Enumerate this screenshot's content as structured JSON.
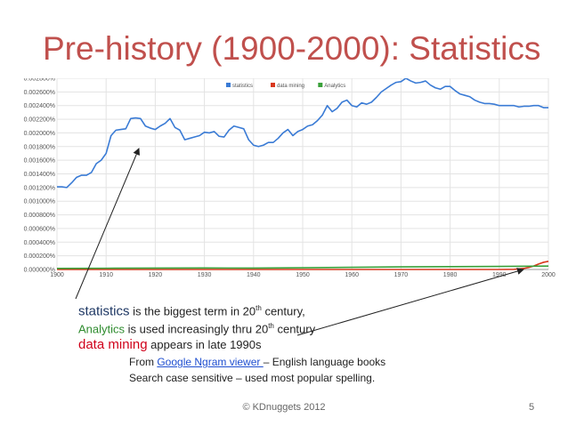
{
  "slide": {
    "title": "Pre-history (1900-2000): Statistics",
    "page_number": "5",
    "footer": "© KDnuggets 2012"
  },
  "annotations": {
    "line1": {
      "term": "statistics",
      "text_before_sup": " is the biggest term in 20",
      "sup": "th",
      "text_after_sup": " century,"
    },
    "line2": {
      "term": "Analytics",
      "text": " is used increasingly thru 20",
      "sup": "th",
      "text_after_sup": " century"
    },
    "line3": {
      "term": "data mining",
      "text": " appears in late 1990s"
    }
  },
  "source": {
    "from_prefix": "From ",
    "link_text": "Google Ngram viewer ",
    "from_suffix": "– English language books",
    "line2": "Search case sensitive – used most popular spelling."
  },
  "colors": {
    "title": "#c0504d",
    "statistics": "#3a7bd5",
    "data_mining": "#d9381e",
    "analytics": "#3aa13a",
    "arrow": "#222222"
  },
  "chart_data": {
    "type": "line",
    "title": "",
    "xlabel": "",
    "ylabel": "",
    "xlim": [
      1900,
      2000
    ],
    "ylim": [
      0,
      0.0028
    ],
    "grid": true,
    "legend": "top-center",
    "x_ticks": [
      "1900",
      "1910",
      "1920",
      "1930",
      "1940",
      "1950",
      "1960",
      "1970",
      "1980",
      "1990",
      "2000"
    ],
    "y_ticks": [
      "0.002800%",
      "0.002600%",
      "0.002400%",
      "0.002200%",
      "0.002000%",
      "0.001800%",
      "0.001600%",
      "0.001400%",
      "0.001200%",
      "0.001000%",
      "0.000800%",
      "0.000600%",
      "0.000400%",
      "0.000200%",
      "0.000000%"
    ],
    "series": [
      {
        "name": "statistics",
        "color": "#3a7bd5",
        "points": [
          [
            1900,
            0.00121
          ],
          [
            1901,
            0.00121
          ],
          [
            1902,
            0.0012
          ],
          [
            1903,
            0.00127
          ],
          [
            1904,
            0.00135
          ],
          [
            1905,
            0.00138
          ],
          [
            1906,
            0.00138
          ],
          [
            1907,
            0.00142
          ],
          [
            1908,
            0.00155
          ],
          [
            1909,
            0.0016
          ],
          [
            1910,
            0.0017
          ],
          [
            1911,
            0.00196
          ],
          [
            1912,
            0.00204
          ],
          [
            1913,
            0.00205
          ],
          [
            1914,
            0.00206
          ],
          [
            1915,
            0.00221
          ],
          [
            1916,
            0.00222
          ],
          [
            1917,
            0.00221
          ],
          [
            1918,
            0.0021
          ],
          [
            1919,
            0.00207
          ],
          [
            1920,
            0.00205
          ],
          [
            1921,
            0.0021
          ],
          [
            1922,
            0.00214
          ],
          [
            1923,
            0.00221
          ],
          [
            1924,
            0.00208
          ],
          [
            1925,
            0.00204
          ],
          [
            1926,
            0.0019
          ],
          [
            1927,
            0.00192
          ],
          [
            1928,
            0.00194
          ],
          [
            1929,
            0.00196
          ],
          [
            1930,
            0.00201
          ],
          [
            1931,
            0.002
          ],
          [
            1932,
            0.00202
          ],
          [
            1933,
            0.00195
          ],
          [
            1934,
            0.00194
          ],
          [
            1935,
            0.00204
          ],
          [
            1936,
            0.0021
          ],
          [
            1937,
            0.00208
          ],
          [
            1938,
            0.00206
          ],
          [
            1939,
            0.0019
          ],
          [
            1940,
            0.00182
          ],
          [
            1941,
            0.0018
          ],
          [
            1942,
            0.00182
          ],
          [
            1943,
            0.00186
          ],
          [
            1944,
            0.00186
          ],
          [
            1945,
            0.00192
          ],
          [
            1946,
            0.002
          ],
          [
            1947,
            0.00205
          ],
          [
            1948,
            0.00196
          ],
          [
            1949,
            0.00202
          ],
          [
            1950,
            0.00205
          ],
          [
            1951,
            0.0021
          ],
          [
            1952,
            0.00212
          ],
          [
            1953,
            0.00218
          ],
          [
            1954,
            0.00226
          ],
          [
            1955,
            0.0024
          ],
          [
            1956,
            0.00231
          ],
          [
            1957,
            0.00236
          ],
          [
            1958,
            0.00245
          ],
          [
            1959,
            0.00248
          ],
          [
            1960,
            0.0024
          ],
          [
            1961,
            0.00238
          ],
          [
            1962,
            0.00244
          ],
          [
            1963,
            0.00242
          ],
          [
            1964,
            0.00245
          ],
          [
            1965,
            0.00252
          ],
          [
            1966,
            0.0026
          ],
          [
            1967,
            0.00265
          ],
          [
            1968,
            0.0027
          ],
          [
            1969,
            0.00274
          ],
          [
            1970,
            0.00275
          ],
          [
            1971,
            0.0028
          ],
          [
            1972,
            0.00276
          ],
          [
            1973,
            0.00273
          ],
          [
            1974,
            0.00274
          ],
          [
            1975,
            0.00276
          ],
          [
            1976,
            0.0027
          ],
          [
            1977,
            0.00266
          ],
          [
            1978,
            0.00264
          ],
          [
            1979,
            0.00268
          ],
          [
            1980,
            0.00268
          ],
          [
            1981,
            0.00262
          ],
          [
            1982,
            0.00257
          ],
          [
            1983,
            0.00255
          ],
          [
            1984,
            0.00253
          ],
          [
            1985,
            0.00248
          ],
          [
            1986,
            0.00245
          ],
          [
            1987,
            0.00243
          ],
          [
            1988,
            0.00243
          ],
          [
            1989,
            0.00242
          ],
          [
            1990,
            0.0024
          ],
          [
            1991,
            0.0024
          ],
          [
            1992,
            0.0024
          ],
          [
            1993,
            0.0024
          ],
          [
            1994,
            0.00238
          ],
          [
            1995,
            0.00239
          ],
          [
            1996,
            0.00239
          ],
          [
            1997,
            0.0024
          ],
          [
            1998,
            0.0024
          ],
          [
            1999,
            0.00237
          ],
          [
            2000,
            0.00237
          ]
        ]
      },
      {
        "name": "data mining",
        "color": "#d9381e",
        "points": [
          [
            1900,
            0.0
          ],
          [
            1990,
            0.0
          ],
          [
            1993,
            3e-06
          ],
          [
            1995,
            1.5e-05
          ],
          [
            1996,
            3e-05
          ],
          [
            1997,
            5e-05
          ],
          [
            1998,
            8e-05
          ],
          [
            1999,
            0.000105
          ],
          [
            2000,
            0.00012
          ]
        ]
      },
      {
        "name": "Analytics",
        "color": "#3aa13a",
        "points": [
          [
            1900,
            1.5e-05
          ],
          [
            1910,
            1.8e-05
          ],
          [
            1920,
            2e-05
          ],
          [
            1930,
            2.2e-05
          ],
          [
            1940,
            2e-05
          ],
          [
            1950,
            2.5e-05
          ],
          [
            1960,
            3.2e-05
          ],
          [
            1970,
            3.8e-05
          ],
          [
            1980,
            4.2e-05
          ],
          [
            1990,
            4.5e-05
          ],
          [
            2000,
            5e-05
          ]
        ]
      }
    ]
  }
}
